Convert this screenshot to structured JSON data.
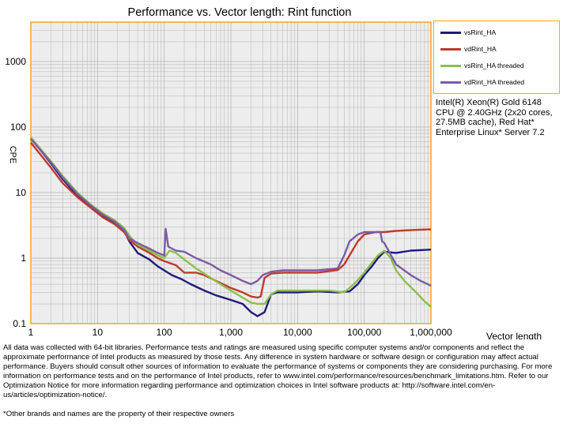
{
  "chart_data": {
    "type": "line",
    "title": "Performance vs. Vector length: Rint function",
    "xlabel": "Vector length",
    "ylabel": "CPE",
    "x_scale": "log",
    "y_scale": "log",
    "xlim": [
      1,
      1000000
    ],
    "ylim": [
      0.1,
      4000
    ],
    "x_ticks": [
      1,
      10,
      100,
      1000,
      10000,
      100000,
      1000000
    ],
    "x_tick_labels": [
      "1",
      "10",
      "100",
      "1,000",
      "10,000",
      "100,000",
      "1,000,000"
    ],
    "y_ticks": [
      0.1,
      1,
      10,
      100,
      1000
    ],
    "y_tick_labels": [
      "0.1",
      "1",
      "10",
      "100",
      "1000"
    ],
    "grid": true,
    "legend_position": "top-right",
    "series": [
      {
        "name": "vsRint_HA",
        "color": "#1F1A7A",
        "points": [
          [
            1,
            68
          ],
          [
            2,
            28
          ],
          [
            3,
            16
          ],
          [
            5,
            9
          ],
          [
            8,
            6.2
          ],
          [
            12,
            4.5
          ],
          [
            18,
            3.4
          ],
          [
            25,
            2.6
          ],
          [
            30,
            1.8
          ],
          [
            40,
            1.2
          ],
          [
            60,
            0.95
          ],
          [
            80,
            0.75
          ],
          [
            100,
            0.65
          ],
          [
            130,
            0.55
          ],
          [
            180,
            0.48
          ],
          [
            250,
            0.4
          ],
          [
            400,
            0.32
          ],
          [
            600,
            0.27
          ],
          [
            1000,
            0.23
          ],
          [
            1500,
            0.2
          ],
          [
            2000,
            0.15
          ],
          [
            2500,
            0.13
          ],
          [
            3200,
            0.15
          ],
          [
            4000,
            0.28
          ],
          [
            5000,
            0.3
          ],
          [
            10000,
            0.3
          ],
          [
            20000,
            0.31
          ],
          [
            40000,
            0.3
          ],
          [
            60000,
            0.31
          ],
          [
            80000,
            0.4
          ],
          [
            100000,
            0.55
          ],
          [
            130000,
            0.75
          ],
          [
            160000,
            1.0
          ],
          [
            200000,
            1.25
          ],
          [
            300000,
            1.2
          ],
          [
            500000,
            1.3
          ],
          [
            1000000,
            1.35
          ]
        ]
      },
      {
        "name": "vdRint_HA",
        "color": "#C0392B",
        "points": [
          [
            1,
            58
          ],
          [
            2,
            24
          ],
          [
            3,
            14
          ],
          [
            5,
            8.5
          ],
          [
            8,
            5.8
          ],
          [
            12,
            4.2
          ],
          [
            18,
            3.3
          ],
          [
            25,
            2.5
          ],
          [
            30,
            1.9
          ],
          [
            40,
            1.5
          ],
          [
            60,
            1.2
          ],
          [
            80,
            1.0
          ],
          [
            100,
            0.9
          ],
          [
            150,
            0.78
          ],
          [
            200,
            0.6
          ],
          [
            300,
            0.6
          ],
          [
            400,
            0.55
          ],
          [
            600,
            0.45
          ],
          [
            1000,
            0.35
          ],
          [
            1500,
            0.3
          ],
          [
            2000,
            0.26
          ],
          [
            2500,
            0.25
          ],
          [
            2800,
            0.26
          ],
          [
            3200,
            0.5
          ],
          [
            4000,
            0.58
          ],
          [
            6000,
            0.6
          ],
          [
            10000,
            0.6
          ],
          [
            20000,
            0.6
          ],
          [
            40000,
            0.66
          ],
          [
            50000,
            0.8
          ],
          [
            60000,
            1.1
          ],
          [
            80000,
            1.8
          ],
          [
            100000,
            2.3
          ],
          [
            150000,
            2.5
          ],
          [
            200000,
            2.5
          ],
          [
            300000,
            2.6
          ],
          [
            600000,
            2.7
          ],
          [
            1000000,
            2.75
          ]
        ]
      },
      {
        "name": "vsRint_HA threaded",
        "color": "#8BBF4A",
        "points": [
          [
            1,
            70
          ],
          [
            2,
            30
          ],
          [
            3,
            18
          ],
          [
            5,
            10
          ],
          [
            8,
            6.5
          ],
          [
            12,
            4.8
          ],
          [
            18,
            3.8
          ],
          [
            25,
            2.9
          ],
          [
            30,
            2.2
          ],
          [
            40,
            1.6
          ],
          [
            60,
            1.3
          ],
          [
            80,
            1.1
          ],
          [
            100,
            1.0
          ],
          [
            120,
            1.3
          ],
          [
            150,
            1.2
          ],
          [
            200,
            0.95
          ],
          [
            300,
            0.7
          ],
          [
            500,
            0.5
          ],
          [
            700,
            0.4
          ],
          [
            1000,
            0.32
          ],
          [
            1500,
            0.25
          ],
          [
            2000,
            0.21
          ],
          [
            2500,
            0.2
          ],
          [
            3200,
            0.2
          ],
          [
            4000,
            0.28
          ],
          [
            5000,
            0.32
          ],
          [
            10000,
            0.32
          ],
          [
            30000,
            0.32
          ],
          [
            50000,
            0.3
          ],
          [
            70000,
            0.4
          ],
          [
            100000,
            0.6
          ],
          [
            130000,
            0.85
          ],
          [
            160000,
            1.1
          ],
          [
            200000,
            1.3
          ],
          [
            250000,
            1.0
          ],
          [
            300000,
            0.65
          ],
          [
            400000,
            0.45
          ],
          [
            600000,
            0.3
          ],
          [
            800000,
            0.22
          ],
          [
            1000000,
            0.18
          ]
        ]
      },
      {
        "name": "vdRint_HA threaded",
        "color": "#7B5BA6",
        "points": [
          [
            1,
            66
          ],
          [
            2,
            29
          ],
          [
            3,
            17
          ],
          [
            5,
            9.5
          ],
          [
            8,
            6.3
          ],
          [
            12,
            4.6
          ],
          [
            18,
            3.6
          ],
          [
            25,
            2.7
          ],
          [
            30,
            2.0
          ],
          [
            40,
            1.7
          ],
          [
            60,
            1.4
          ],
          [
            80,
            1.2
          ],
          [
            100,
            1.1
          ],
          [
            105,
            2.8
          ],
          [
            115,
            1.5
          ],
          [
            150,
            1.3
          ],
          [
            200,
            1.25
          ],
          [
            300,
            1.0
          ],
          [
            500,
            0.8
          ],
          [
            700,
            0.65
          ],
          [
            1000,
            0.55
          ],
          [
            1500,
            0.45
          ],
          [
            2000,
            0.4
          ],
          [
            2500,
            0.45
          ],
          [
            3000,
            0.55
          ],
          [
            4000,
            0.62
          ],
          [
            6000,
            0.65
          ],
          [
            10000,
            0.65
          ],
          [
            20000,
            0.65
          ],
          [
            40000,
            0.7
          ],
          [
            50000,
            1.1
          ],
          [
            60000,
            1.8
          ],
          [
            80000,
            2.3
          ],
          [
            100000,
            2.5
          ],
          [
            150000,
            2.5
          ],
          [
            175000,
            2.5
          ],
          [
            185000,
            1.8
          ],
          [
            200000,
            1.7
          ],
          [
            300000,
            0.8
          ],
          [
            500000,
            0.55
          ],
          [
            700000,
            0.45
          ],
          [
            1000000,
            0.38
          ]
        ]
      }
    ]
  },
  "system_note": "Intel(R) Xeon(R) Gold 6148 CPU @ 2.40GHz (2x20 cores, 27.5MB cache), Red Hat* Enterprise Linux* Server 7.2",
  "disclaimer": "All data was collected with 64-bit libraries. Performance tests and ratings are measured using specific computer systems and/or components and reflect the approximate performance of Intel products as measured by those tests. Any difference in system hardware or software design or configuration may affect actual performance. Buyers should consult other sources of information to evaluate the performance of systems or components they are considering purchasing. For more information on performance tests and on the performance of Intel products, refer to www.intel.com/performance/resources/benchmark_limitations.htm. Refer to our Optimization Notice for more information regarding performance and optimization choices in Intel software products at: http://software.intel.com/en-us/articles/optimization-notice/.",
  "footnote": "*Other brands and names are the property of their respective owners",
  "colors": {
    "plot_border": "#F5A623",
    "plot_bg": "#EDEDED",
    "grid": "#BDBDBD"
  }
}
